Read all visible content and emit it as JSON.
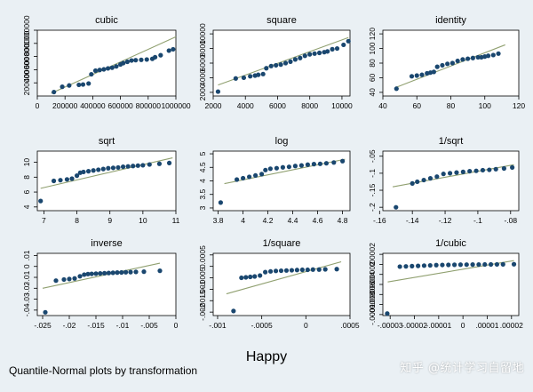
{
  "figure": {
    "xlabel": "Happy",
    "caption": "Quantile-Normal plots by transformation",
    "watermark": "知乎 @统计学习自留地"
  },
  "colors": {
    "background": "#eaf0f4",
    "plot_bg": "#ffffff",
    "points": "#1a476f",
    "line": "#90a070"
  },
  "chart_data": [
    {
      "type": "scatter",
      "title": "cubic",
      "xlim": [
        0,
        1000000
      ],
      "ylim": [
        0,
        1000000
      ],
      "xticks": [
        0,
        200000,
        400000,
        600000,
        800000,
        1000000
      ],
      "yticks": [
        200000,
        400000,
        600000,
        800000,
        1000000
      ],
      "ytick_labels": [
        "200000",
        "400000",
        "600000",
        "800000",
        "1000000"
      ],
      "line": [
        [
          100000,
          40000
        ],
        [
          1000000,
          900000
        ]
      ],
      "points": [
        [
          120000,
          60000
        ],
        [
          180000,
          140000
        ],
        [
          230000,
          160000
        ],
        [
          300000,
          170000
        ],
        [
          330000,
          175000
        ],
        [
          370000,
          190000
        ],
        [
          390000,
          330000
        ],
        [
          420000,
          385000
        ],
        [
          450000,
          395000
        ],
        [
          480000,
          405000
        ],
        [
          510000,
          420000
        ],
        [
          540000,
          430000
        ],
        [
          570000,
          450000
        ],
        [
          600000,
          480000
        ],
        [
          620000,
          500000
        ],
        [
          650000,
          520000
        ],
        [
          680000,
          540000
        ],
        [
          710000,
          545000
        ],
        [
          750000,
          550000
        ],
        [
          790000,
          555000
        ],
        [
          830000,
          565000
        ],
        [
          850000,
          590000
        ],
        [
          890000,
          620000
        ],
        [
          950000,
          690000
        ],
        [
          980000,
          710000
        ]
      ]
    },
    {
      "type": "scatter",
      "title": "square",
      "xlim": [
        2000,
        10500
      ],
      "ylim": [
        1500,
        10500
      ],
      "xticks": [
        2000,
        4000,
        6000,
        8000,
        10000
      ],
      "yticks": [
        2000,
        4000,
        6000,
        8000,
        10000
      ],
      "ytick_labels": [
        "2000",
        "4000",
        "6000",
        "8000",
        "10000"
      ],
      "line": [
        [
          2300,
          3000
        ],
        [
          10400,
          9500
        ]
      ],
      "points": [
        [
          2300,
          2100
        ],
        [
          3400,
          3900
        ],
        [
          3900,
          4000
        ],
        [
          4300,
          4200
        ],
        [
          4600,
          4300
        ],
        [
          4800,
          4400
        ],
        [
          5100,
          4500
        ],
        [
          5300,
          5300
        ],
        [
          5600,
          5600
        ],
        [
          5900,
          5700
        ],
        [
          6200,
          5800
        ],
        [
          6500,
          6000
        ],
        [
          6800,
          6200
        ],
        [
          7100,
          6500
        ],
        [
          7400,
          6700
        ],
        [
          7700,
          7000
        ],
        [
          8000,
          7200
        ],
        [
          8300,
          7300
        ],
        [
          8600,
          7400
        ],
        [
          8900,
          7500
        ],
        [
          9100,
          7600
        ],
        [
          9400,
          7900
        ],
        [
          9700,
          8000
        ],
        [
          10100,
          8500
        ],
        [
          10400,
          9000
        ]
      ]
    },
    {
      "type": "scatter",
      "title": "identity",
      "xlim": [
        40,
        120
      ],
      "ylim": [
        35,
        125
      ],
      "xticks": [
        40,
        60,
        80,
        100,
        120
      ],
      "yticks": [
        40,
        60,
        80,
        100,
        120
      ],
      "ytick_labels": [
        "40",
        "60",
        "80",
        "100",
        "120"
      ],
      "line": [
        [
          48,
          47
        ],
        [
          112,
          105
        ]
      ],
      "points": [
        [
          48,
          45
        ],
        [
          57,
          62
        ],
        [
          60,
          63
        ],
        [
          63,
          64
        ],
        [
          66,
          66
        ],
        [
          68,
          67
        ],
        [
          70,
          68
        ],
        [
          72,
          75
        ],
        [
          75,
          77
        ],
        [
          78,
          79
        ],
        [
          81,
          80
        ],
        [
          84,
          83
        ],
        [
          87,
          85
        ],
        [
          90,
          86
        ],
        [
          93,
          87
        ],
        [
          96,
          88
        ],
        [
          98,
          88
        ],
        [
          100,
          89
        ],
        [
          102,
          90
        ],
        [
          105,
          91
        ],
        [
          108,
          93
        ]
      ]
    },
    {
      "type": "scatter",
      "title": "sqrt",
      "xlim": [
        6.8,
        11
      ],
      "ylim": [
        3.5,
        11.5
      ],
      "xticks": [
        7,
        8,
        9,
        10,
        11
      ],
      "yticks": [
        4,
        6,
        8,
        10
      ],
      "ytick_labels": [
        "4",
        "6",
        "8",
        "10"
      ],
      "line": [
        [
          6.9,
          6.5
        ],
        [
          10.9,
          10.6
        ]
      ],
      "points": [
        [
          6.9,
          4.8
        ],
        [
          7.3,
          7.5
        ],
        [
          7.5,
          7.6
        ],
        [
          7.7,
          7.7
        ],
        [
          7.85,
          7.8
        ],
        [
          8.0,
          8.2
        ],
        [
          8.1,
          8.6
        ],
        [
          8.2,
          8.7
        ],
        [
          8.35,
          8.8
        ],
        [
          8.5,
          8.9
        ],
        [
          8.65,
          9.0
        ],
        [
          8.8,
          9.1
        ],
        [
          8.95,
          9.2
        ],
        [
          9.1,
          9.25
        ],
        [
          9.25,
          9.3
        ],
        [
          9.4,
          9.4
        ],
        [
          9.55,
          9.45
        ],
        [
          9.7,
          9.5
        ],
        [
          9.85,
          9.55
        ],
        [
          10.0,
          9.6
        ],
        [
          10.2,
          9.7
        ],
        [
          10.5,
          9.8
        ],
        [
          10.8,
          9.9
        ]
      ]
    },
    {
      "type": "scatter",
      "title": "log",
      "xlim": [
        3.76,
        4.86
      ],
      "ylim": [
        2.9,
        5.1
      ],
      "xticks": [
        3.8,
        4,
        4.2,
        4.4,
        4.6,
        4.8
      ],
      "yticks": [
        3,
        3.5,
        4,
        4.5,
        5
      ],
      "ytick_labels": [
        "3",
        "3.5",
        "4",
        "4.5",
        "5"
      ],
      "line": [
        [
          3.85,
          3.9
        ],
        [
          4.82,
          4.8
        ]
      ],
      "points": [
        [
          3.82,
          3.2
        ],
        [
          3.95,
          4.05
        ],
        [
          4.0,
          4.1
        ],
        [
          4.05,
          4.15
        ],
        [
          4.1,
          4.2
        ],
        [
          4.15,
          4.25
        ],
        [
          4.18,
          4.4
        ],
        [
          4.22,
          4.45
        ],
        [
          4.27,
          4.47
        ],
        [
          4.32,
          4.5
        ],
        [
          4.37,
          4.52
        ],
        [
          4.42,
          4.55
        ],
        [
          4.47,
          4.57
        ],
        [
          4.52,
          4.6
        ],
        [
          4.57,
          4.62
        ],
        [
          4.62,
          4.63
        ],
        [
          4.67,
          4.65
        ],
        [
          4.73,
          4.68
        ],
        [
          4.8,
          4.73
        ]
      ]
    },
    {
      "type": "scatter",
      "title": "1/sqrt",
      "xlim": [
        -0.158,
        -0.075
      ],
      "ylim": [
        -0.21,
        -0.035
      ],
      "xticks": [
        -0.16,
        -0.14,
        -0.12,
        -0.1,
        -0.08
      ],
      "xtick_labels": [
        "-.16",
        "-.14",
        "-.12",
        "-.1",
        "-.08"
      ],
      "yticks": [
        -0.2,
        -0.15,
        -0.1,
        -0.05
      ],
      "ytick_labels": [
        "-.2",
        "-.15",
        "-.1",
        "-.05"
      ],
      "line": [
        [
          -0.152,
          -0.14
        ],
        [
          -0.078,
          -0.075
        ]
      ],
      "points": [
        [
          -0.15,
          -0.2
        ],
        [
          -0.14,
          -0.13
        ],
        [
          -0.137,
          -0.125
        ],
        [
          -0.133,
          -0.12
        ],
        [
          -0.129,
          -0.115
        ],
        [
          -0.125,
          -0.11
        ],
        [
          -0.121,
          -0.102
        ],
        [
          -0.117,
          -0.1
        ],
        [
          -0.113,
          -0.098
        ],
        [
          -0.109,
          -0.096
        ],
        [
          -0.105,
          -0.094
        ],
        [
          -0.101,
          -0.093
        ],
        [
          -0.097,
          -0.091
        ],
        [
          -0.093,
          -0.09
        ],
        [
          -0.089,
          -0.088
        ],
        [
          -0.084,
          -0.086
        ],
        [
          -0.079,
          -0.083
        ]
      ]
    },
    {
      "type": "scatter",
      "title": "inverse",
      "xlim": [
        -0.026,
        0
      ],
      "ylim": [
        -0.045,
        0.012
      ],
      "xticks": [
        -0.025,
        -0.02,
        -0.015,
        -0.01,
        -0.005,
        0
      ],
      "xtick_labels": [
        "-.025",
        "-.02",
        "-.015",
        "-.01",
        "-.005",
        "0"
      ],
      "yticks": [
        -0.04,
        -0.03,
        -0.02,
        -0.01,
        0,
        0.01
      ],
      "ytick_labels": [
        "-.04",
        "-.03",
        "-.02",
        "-.01",
        "0",
        ".01"
      ],
      "line": [
        [
          -0.025,
          -0.02
        ],
        [
          -0.003,
          0.003
        ]
      ],
      "points": [
        [
          -0.0245,
          -0.042
        ],
        [
          -0.0225,
          -0.013
        ],
        [
          -0.021,
          -0.012
        ],
        [
          -0.02,
          -0.0115
        ],
        [
          -0.019,
          -0.011
        ],
        [
          -0.018,
          -0.009
        ],
        [
          -0.0172,
          -0.0075
        ],
        [
          -0.0165,
          -0.007
        ],
        [
          -0.0158,
          -0.0068
        ],
        [
          -0.015,
          -0.0066
        ],
        [
          -0.0142,
          -0.0064
        ],
        [
          -0.0134,
          -0.0062
        ],
        [
          -0.0126,
          -0.006
        ],
        [
          -0.0118,
          -0.0058
        ],
        [
          -0.011,
          -0.0056
        ],
        [
          -0.0102,
          -0.0055
        ],
        [
          -0.0094,
          -0.0053
        ],
        [
          -0.0085,
          -0.0052
        ],
        [
          -0.0075,
          -0.005
        ],
        [
          -0.006,
          -0.0048
        ],
        [
          -0.003,
          -0.004
        ]
      ]
    },
    {
      "type": "scatter",
      "title": "1/square",
      "xlim": [
        -0.00105,
        0.0005
      ],
      "ylim": [
        -0.00215,
        0.00057
      ],
      "xticks": [
        -0.001,
        -0.0005,
        0,
        0.0005
      ],
      "xtick_labels": [
        "-.001",
        "-.0005",
        "0",
        ".0005"
      ],
      "yticks": [
        -0.002,
        -0.0015,
        -0.001,
        -0.0005,
        0,
        0.0005
      ],
      "ytick_labels": [
        "-.002",
        "-.0015",
        "-.001",
        "-.0005",
        "0",
        ".0005"
      ],
      "line": [
        [
          -0.0009,
          -0.0012
        ],
        [
          0.0004,
          0.0002
        ]
      ],
      "points": [
        [
          -0.00082,
          -0.00195
        ],
        [
          -0.00073,
          -0.0005
        ],
        [
          -0.00068,
          -0.00048
        ],
        [
          -0.00063,
          -0.00046
        ],
        [
          -0.00058,
          -0.00044
        ],
        [
          -0.00052,
          -0.0004
        ],
        [
          -0.00046,
          -0.00025
        ],
        [
          -0.0004,
          -0.00022
        ],
        [
          -0.00034,
          -0.0002
        ],
        [
          -0.00028,
          -0.00019
        ],
        [
          -0.00022,
          -0.00018
        ],
        [
          -0.00016,
          -0.00017
        ],
        [
          -0.0001,
          -0.00016
        ],
        [
          -4e-05,
          -0.00015
        ],
        [
          2e-05,
          -0.00015
        ],
        [
          8e-05,
          -0.00014
        ],
        [
          0.00015,
          -0.00014
        ],
        [
          0.00022,
          -0.00013
        ],
        [
          0.00035,
          -0.00012
        ]
      ]
    },
    {
      "type": "scatter",
      "title": "1/cubic",
      "xlim": [
        -3.3e-05,
        2.3e-05
      ],
      "ylim": [
        -0.000102,
        2.2e-05
      ],
      "xticks": [
        -3e-05,
        -2e-05,
        -1e-05,
        0,
        1e-05,
        2e-05
      ],
      "xtick_labels": [
        "-.00003",
        "-.00002",
        "-.00001",
        "0",
        ".00001",
        ".00002"
      ],
      "yticks": [
        -0.0001,
        -8e-05,
        -6e-05,
        -4e-05,
        -2e-05,
        0,
        2e-05
      ],
      "ytick_labels": [
        "-.0001",
        "-.00008",
        "-.00006",
        "-.00004",
        "-.00002",
        "0",
        ".00002"
      ],
      "line": [
        [
          -3.1e-05,
          -3.5e-05
        ],
        [
          2.1e-05,
          7.5e-06
        ]
      ],
      "points": [
        [
          -3.12e-05,
          -9.8e-05
        ],
        [
          -2.6e-05,
          -4.5e-06
        ],
        [
          -2.35e-05,
          -4e-06
        ],
        [
          -2.1e-05,
          -3.5e-06
        ],
        [
          -1.85e-05,
          -3e-06
        ],
        [
          -1.6e-05,
          -2.5e-06
        ],
        [
          -1.35e-05,
          -2e-06
        ],
        [
          -1.1e-05,
          -1.5e-06
        ],
        [
          -8.5e-06,
          -1.2e-06
        ],
        [
          -6e-06,
          -1e-06
        ],
        [
          -3.5e-06,
          -8e-07
        ],
        [
          -1e-06,
          -6e-07
        ],
        [
          1.5e-06,
          -5e-07
        ],
        [
          4e-06,
          -4e-07
        ],
        [
          6.5e-06,
          -3e-07
        ],
        [
          9e-06,
          -2e-07
        ],
        [
          1.15e-05,
          -1e-07
        ],
        [
          1.4e-05,
          0
        ],
        [
          1.65e-05,
          1e-07
        ],
        [
          2.1e-05,
          3e-07
        ]
      ]
    }
  ]
}
